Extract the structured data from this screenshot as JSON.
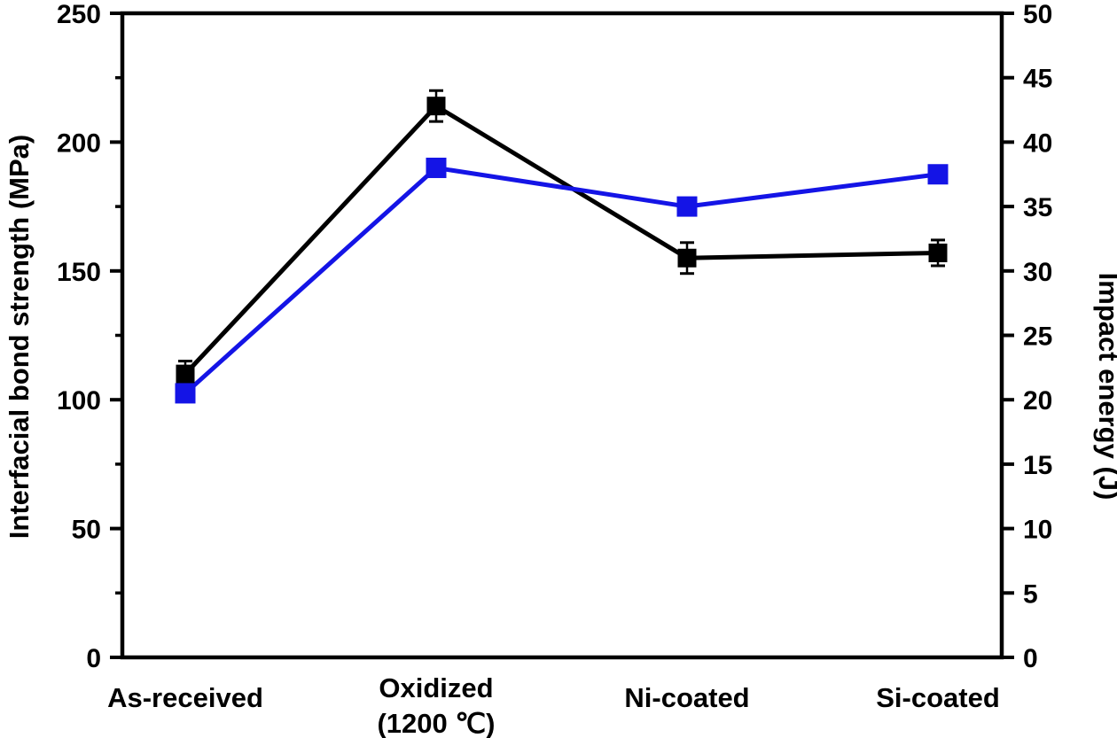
{
  "page": {
    "background": "#ffffff"
  },
  "chart_data": {
    "type": "line",
    "title": "",
    "categories": [
      "As-received",
      "Oxidized\n(1200 ℃)",
      "Ni-coated",
      "Si-coated"
    ],
    "series": [
      {
        "name": "Interfacial bond strength",
        "axis": "left",
        "color": "#000000",
        "marker": "square",
        "marker_size": 21,
        "values": [
          110,
          214,
          155,
          157
        ],
        "errors": [
          5,
          6,
          6,
          5
        ]
      },
      {
        "name": "Impact energy",
        "axis": "right",
        "color": "#1414e6",
        "marker": "square",
        "marker_size": 23,
        "values": [
          20.5,
          38,
          35,
          37.5
        ],
        "errors": [
          0,
          0,
          0,
          0.6
        ]
      }
    ],
    "left_axis": {
      "label": "Interfacial bond strength (MPa)",
      "min": 0,
      "max": 250,
      "major_tick_step": 50,
      "minor_tick_step": 25,
      "tick_labels": [
        "0",
        "50",
        "100",
        "150",
        "200",
        "250"
      ]
    },
    "right_axis": {
      "label": "Impact energy (J)",
      "min": 0,
      "max": 50,
      "major_tick_step": 5,
      "tick_labels": [
        "0",
        "5",
        "10",
        "15",
        "20",
        "25",
        "30",
        "35",
        "40",
        "45",
        "50"
      ]
    },
    "grid": false,
    "legend": false,
    "frame": true
  }
}
